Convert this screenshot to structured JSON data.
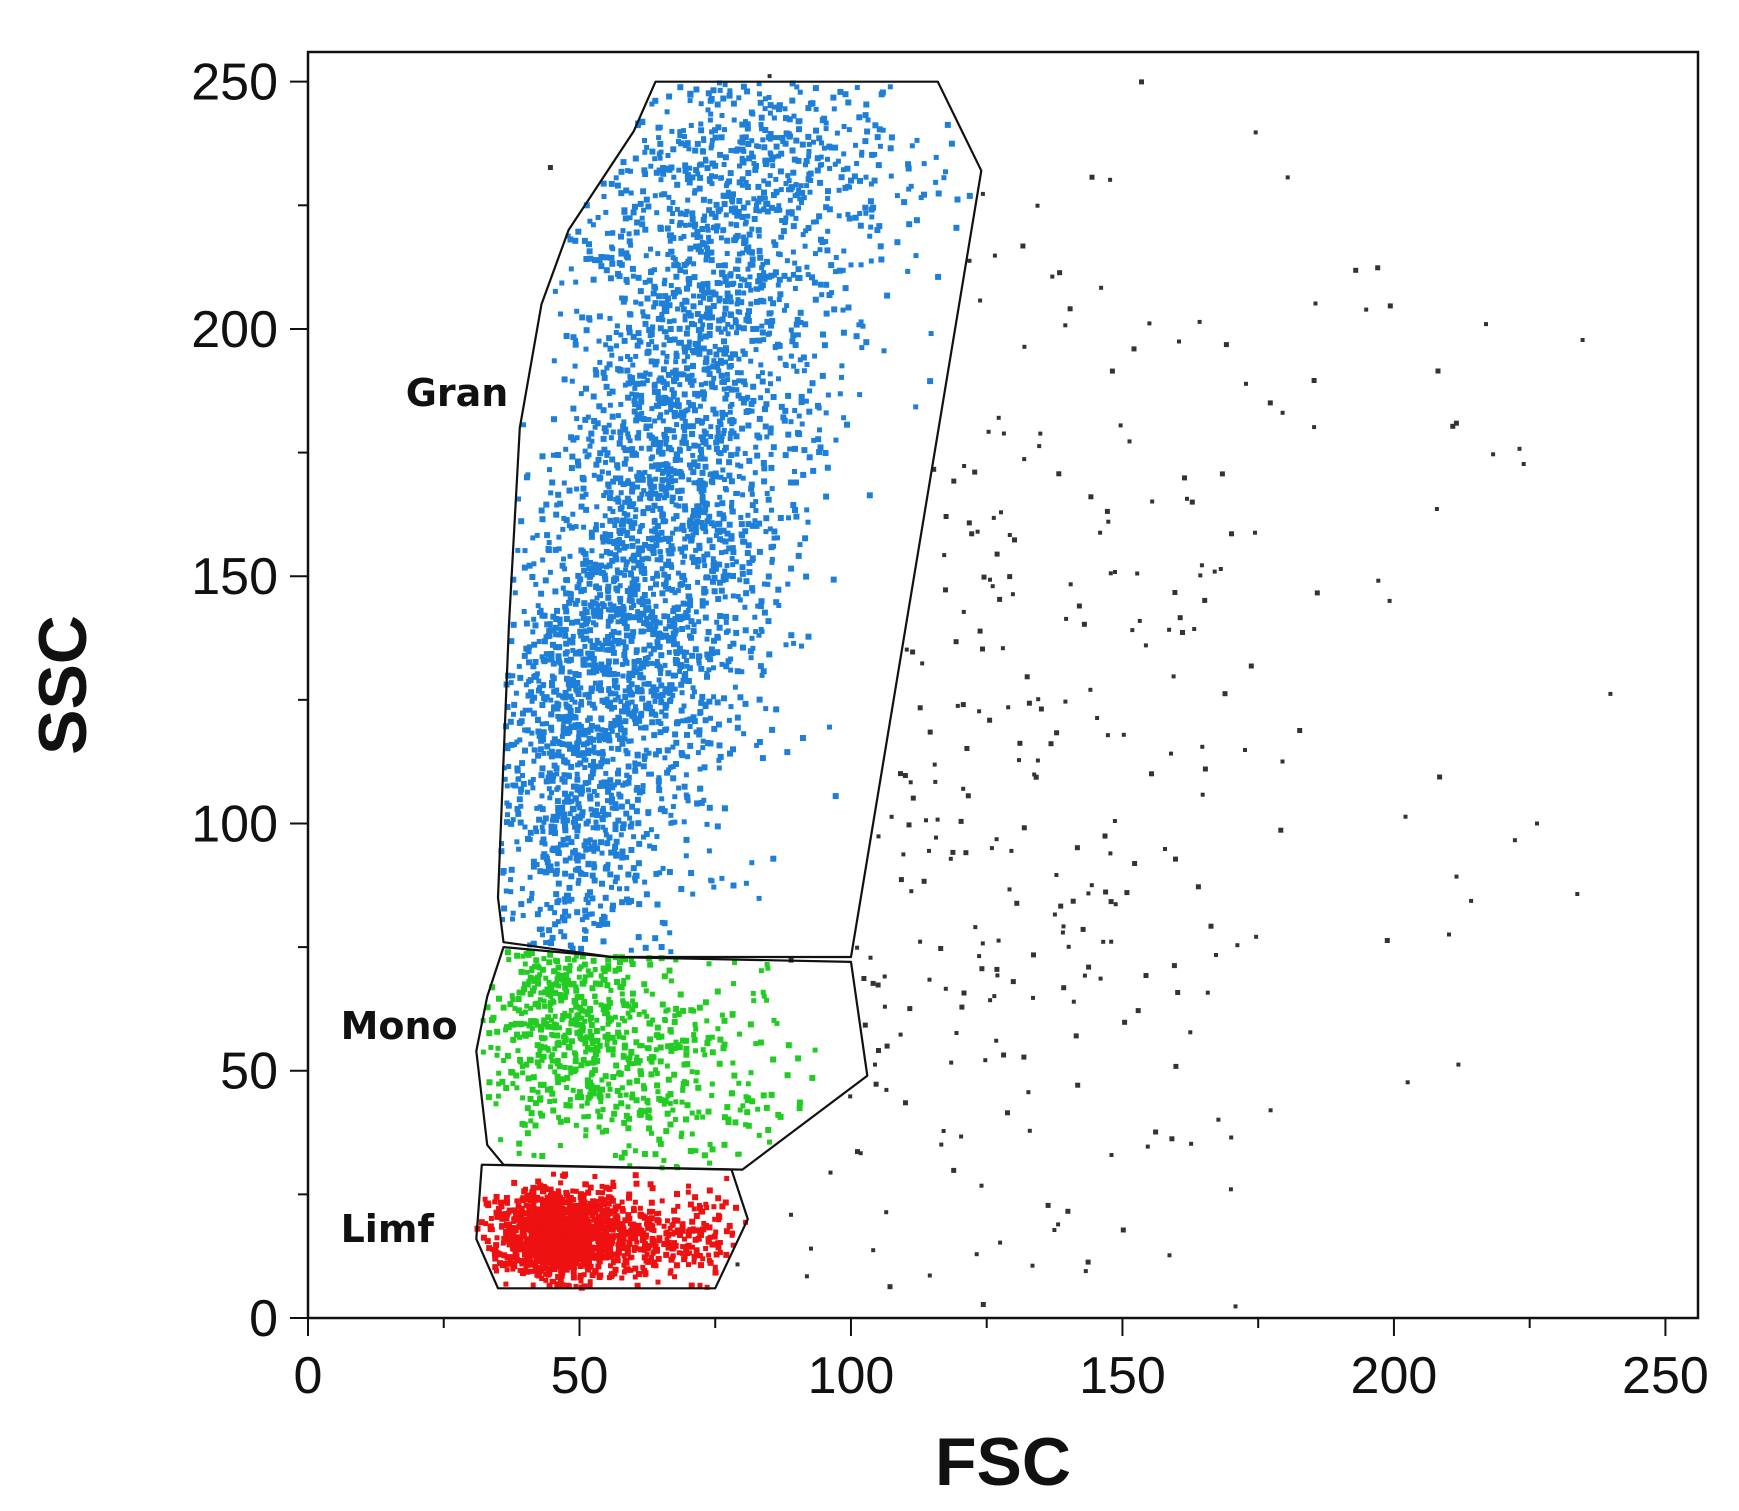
{
  "chart_data": {
    "type": "scatter",
    "title": "",
    "xlabel": "FSC",
    "ylabel": "SSC",
    "xlim": [
      0,
      256
    ],
    "ylim": [
      0,
      256
    ],
    "x_ticks": [
      0,
      50,
      100,
      150,
      200,
      250
    ],
    "y_ticks": [
      0,
      50,
      100,
      150,
      200,
      250
    ],
    "grid": false,
    "legend": "none",
    "point_colors": {
      "Gran": "#1e7fd8",
      "Mono": "#22cc22",
      "Limf": "#ee1111",
      "ungated": "#333333"
    },
    "gates": [
      {
        "name": "Gran",
        "label_at": [
          18,
          187
        ],
        "polygon": [
          [
            64,
            250
          ],
          [
            116,
            250
          ],
          [
            124,
            232
          ],
          [
            100,
            73
          ],
          [
            56,
            73
          ],
          [
            36,
            76
          ],
          [
            35,
            85
          ],
          [
            37,
            140
          ],
          [
            39,
            180
          ],
          [
            43,
            205
          ],
          [
            48,
            220
          ],
          [
            60,
            240
          ]
        ],
        "clusters": [
          {
            "cx": 48,
            "cy": 110,
            "sx": 7,
            "sy": 22,
            "n": 700
          },
          {
            "cx": 61,
            "cy": 138,
            "sx": 9,
            "sy": 28,
            "n": 900
          },
          {
            "cx": 69,
            "cy": 170,
            "sx": 11,
            "sy": 30,
            "n": 900
          },
          {
            "cx": 76,
            "cy": 205,
            "sx": 13,
            "sy": 26,
            "n": 700
          },
          {
            "cx": 85,
            "cy": 232,
            "sx": 15,
            "sy": 14,
            "n": 400
          }
        ]
      },
      {
        "name": "Mono",
        "label_at": [
          6,
          59
        ],
        "polygon": [
          [
            36,
            75
          ],
          [
            56,
            73
          ],
          [
            100,
            72
          ],
          [
            103,
            49
          ],
          [
            80,
            30
          ],
          [
            36,
            31
          ],
          [
            33,
            35
          ],
          [
            31,
            54
          ],
          [
            33,
            65
          ]
        ],
        "clusters": [
          {
            "cx": 48,
            "cy": 60,
            "sx": 8,
            "sy": 11,
            "n": 450
          },
          {
            "cx": 65,
            "cy": 50,
            "sx": 13,
            "sy": 12,
            "n": 300
          }
        ]
      },
      {
        "name": "Limf",
        "label_at": [
          6,
          18
        ],
        "polygon": [
          [
            32,
            31
          ],
          [
            78,
            30
          ],
          [
            81,
            20
          ],
          [
            75,
            6
          ],
          [
            35,
            6
          ],
          [
            31,
            16
          ]
        ],
        "clusters": [
          {
            "cx": 46,
            "cy": 17,
            "sx": 6,
            "sy": 4.5,
            "n": 1100
          },
          {
            "cx": 62,
            "cy": 16,
            "sx": 9,
            "sy": 5,
            "n": 350
          }
        ]
      }
    ],
    "ungated_events": {
      "clusters": [
        {
          "cx": 115,
          "cy": 120,
          "sx": 30,
          "sy": 70,
          "n": 260
        },
        {
          "cx": 175,
          "cy": 130,
          "sx": 45,
          "sy": 90,
          "n": 60
        }
      ]
    }
  }
}
